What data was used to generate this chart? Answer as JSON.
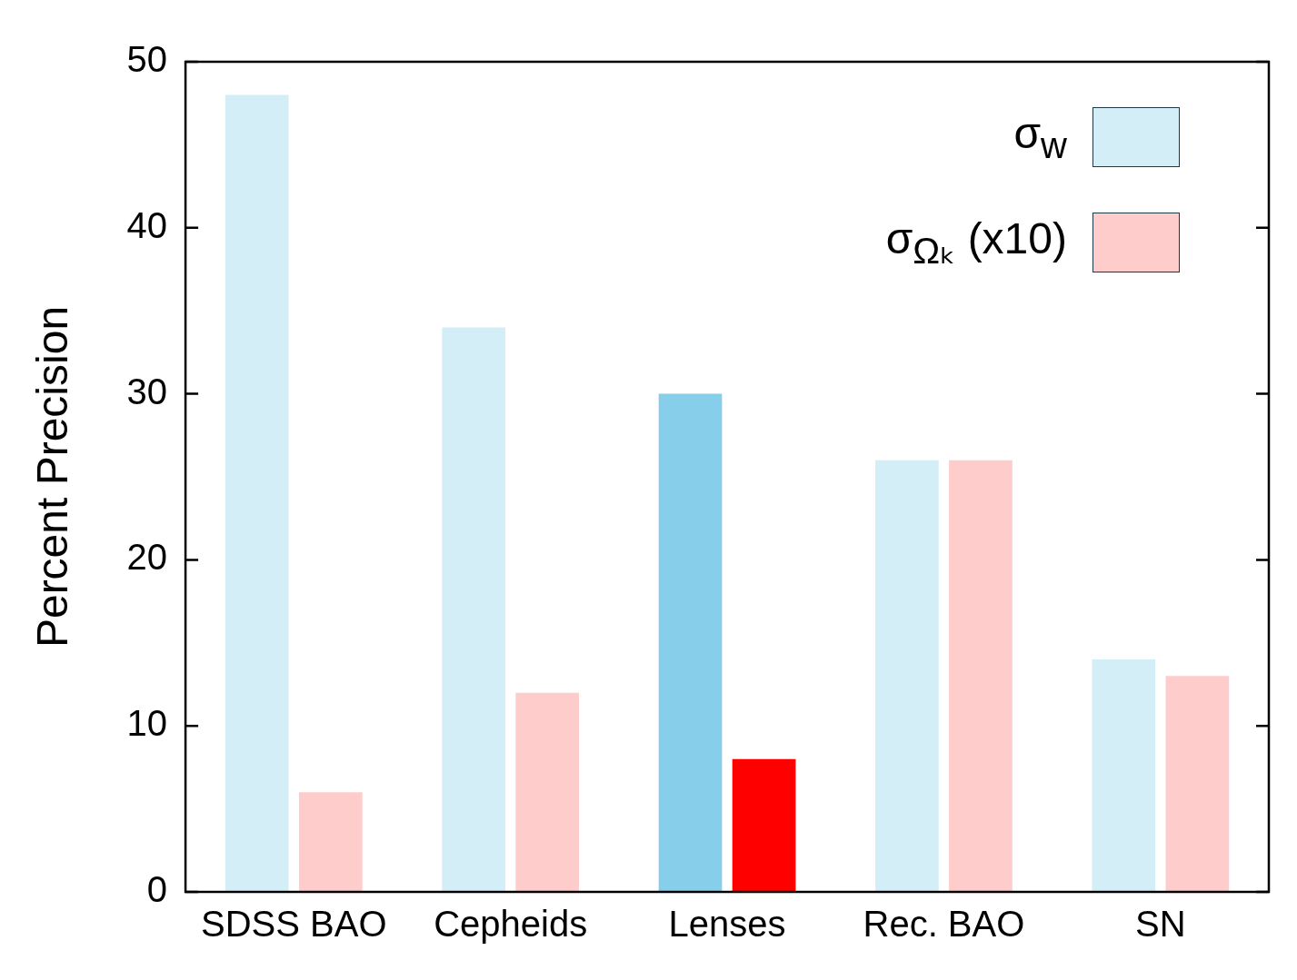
{
  "chart_data": {
    "type": "bar",
    "ylabel": "Percent Precision",
    "categories": [
      "SDSS BAO",
      "Cepheids",
      "Lenses",
      "Rec. BAO",
      "SN"
    ],
    "series": [
      {
        "name": "σ$_{w}$",
        "color": "#d4eef8",
        "colors": [
          "#d4eef8",
          "#d4eef8",
          "#87ceeb",
          "#d4eef8",
          "#d4eef8"
        ],
        "values": [
          48,
          34,
          30,
          26,
          14
        ]
      },
      {
        "name": "σ$_{Ωₖ}$ (x10)",
        "color": "#ffcccc",
        "colors": [
          "#ffcccc",
          "#ffcccc",
          "#ff0000",
          "#ffcccc",
          "#ffcccc"
        ],
        "values": [
          6,
          12,
          8,
          26,
          13
        ]
      }
    ],
    "ylim": [
      0,
      50
    ],
    "yticks": [
      0,
      10,
      20,
      30,
      40,
      50
    ],
    "grid": false,
    "legend": "top right"
  }
}
